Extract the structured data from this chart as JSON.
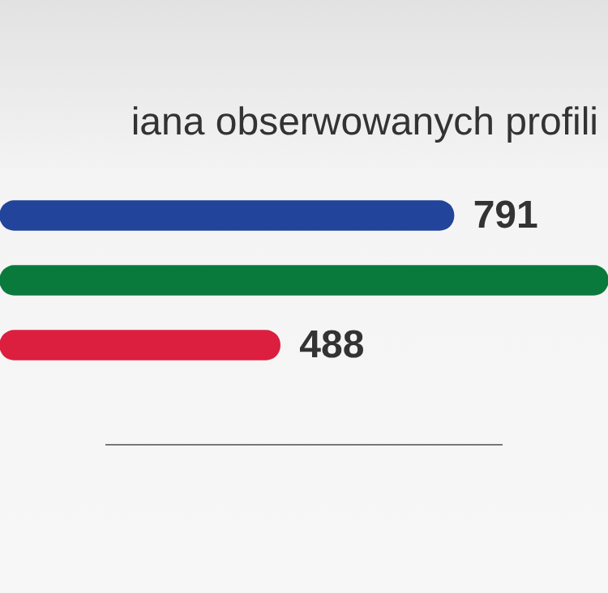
{
  "chart_data": {
    "type": "bar",
    "orientation": "horizontal",
    "title": "iana obserwowanych profili",
    "categories": [
      null,
      null,
      null
    ],
    "series": [
      {
        "colors": [
          "#22449a",
          "#0a7a3c",
          "#dc1f3f"
        ],
        "values": [
          791,
          1060,
          488
        ],
        "value_labels": [
          "791",
          null,
          "488"
        ]
      }
    ],
    "xlim": [
      0,
      1060
    ],
    "legend": false
  }
}
